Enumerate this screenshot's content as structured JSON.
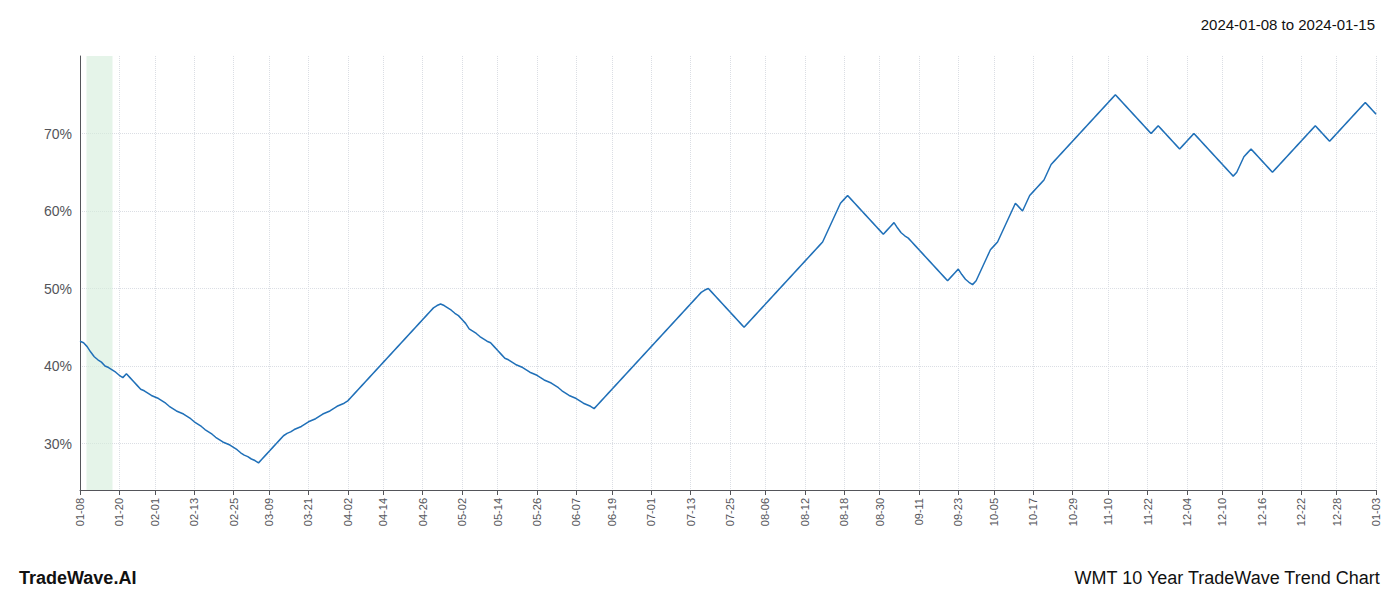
{
  "chart_data": {
    "type": "line",
    "title": "2024-01-08 to 2024-01-15",
    "annotations": [
      "TradeWave.AI",
      "WMT 10 Year TradeWave Trend Chart"
    ],
    "color": "#2070b8",
    "grid": true,
    "ylim": [
      24,
      80
    ],
    "yticks": [
      {
        "value": 30,
        "label": "30%"
      },
      {
        "value": 40,
        "label": "40%"
      },
      {
        "value": 50,
        "label": "50%"
      },
      {
        "value": 60,
        "label": "60%"
      },
      {
        "value": 70,
        "label": "70%"
      }
    ],
    "highlight": {
      "start": 1.82,
      "end": 9.1,
      "color": "#d4edda"
    },
    "categories": [
      "01-08",
      null,
      null,
      null,
      null,
      null,
      null,
      null,
      null,
      null,
      null,
      "01-20",
      null,
      null,
      null,
      null,
      null,
      null,
      null,
      null,
      null,
      "02-01",
      null,
      null,
      null,
      null,
      null,
      null,
      null,
      null,
      null,
      null,
      "02-13",
      null,
      null,
      null,
      null,
      null,
      null,
      null,
      null,
      null,
      null,
      "02-25",
      null,
      null,
      null,
      null,
      null,
      null,
      null,
      null,
      null,
      "03-09",
      null,
      null,
      null,
      null,
      null,
      null,
      null,
      null,
      null,
      null,
      "03-21",
      null,
      null,
      null,
      null,
      null,
      null,
      null,
      null,
      null,
      null,
      "04-02",
      null,
      null,
      null,
      null,
      null,
      null,
      null,
      null,
      null,
      "04-14",
      null,
      null,
      null,
      null,
      null,
      null,
      null,
      null,
      null,
      null,
      "04-26",
      null,
      null,
      null,
      null,
      null,
      null,
      null,
      null,
      null,
      null,
      "05-02",
      null,
      null,
      null,
      null,
      null,
      null,
      null,
      null,
      null,
      "05-14",
      null,
      null,
      null,
      null,
      null,
      null,
      null,
      null,
      null,
      null,
      "05-26",
      null,
      null,
      null,
      null,
      null,
      null,
      null,
      null,
      null,
      null,
      "06-07",
      null,
      null,
      null,
      null,
      null,
      null,
      null,
      null,
      null,
      "06-19",
      null,
      null,
      null,
      null,
      null,
      null,
      null,
      null,
      null,
      null,
      "07-01",
      null,
      null,
      null,
      null,
      null,
      null,
      null,
      null,
      null,
      null,
      "07-13",
      null,
      null,
      null,
      null,
      null,
      null,
      null,
      null,
      null,
      null,
      "07-25",
      null,
      null,
      null,
      null,
      null,
      null,
      null,
      null,
      null,
      "08-06",
      null,
      null,
      null,
      null,
      null,
      null,
      null,
      null,
      null,
      null,
      "08-12",
      null,
      null,
      null,
      null,
      null,
      null,
      null,
      null,
      null,
      null,
      "08-18",
      null,
      null,
      null,
      null,
      null,
      null,
      null,
      null,
      null,
      "08-30",
      null,
      null,
      null,
      null,
      null,
      null,
      null,
      null,
      null,
      null,
      "09-11",
      null,
      null,
      null,
      null,
      null,
      null,
      null,
      null,
      null,
      null,
      "09-23",
      null,
      null,
      null,
      null,
      null,
      null,
      null,
      null,
      null,
      "10-05",
      null,
      null,
      null,
      null,
      null,
      null,
      null,
      null,
      null,
      null,
      "10-17",
      null,
      null,
      null,
      null,
      null,
      null,
      null,
      null,
      null,
      null,
      "10-29",
      null,
      null,
      null,
      null,
      null,
      null,
      null,
      null,
      null,
      "11-10",
      null,
      null,
      null,
      null,
      null,
      null,
      null,
      null,
      null,
      null,
      "11-22",
      null,
      null,
      null,
      null,
      null,
      null,
      null,
      null,
      null,
      null,
      "12-04",
      null,
      null,
      null,
      null,
      null,
      null,
      null,
      null,
      null,
      "12-10",
      null,
      null,
      null,
      null,
      null,
      null,
      null,
      null,
      null,
      null,
      "12-16",
      null,
      null,
      null,
      null,
      null,
      null,
      null,
      null,
      null,
      null,
      "12-22",
      null,
      null,
      null,
      null,
      null,
      null,
      null,
      null,
      null,
      "12-28",
      null,
      null,
      null,
      null,
      null,
      null,
      null,
      null,
      null,
      null,
      "01-03"
    ],
    "values": [
      43.2,
      43.0,
      42.5,
      41.8,
      41.2,
      40.8,
      40.5,
      40.0,
      39.8,
      39.5,
      39.2,
      38.8,
      38.5,
      39.0,
      38.5,
      38.0,
      37.5,
      37.0,
      36.8,
      36.5,
      36.2,
      36.0,
      35.8,
      35.5,
      35.2,
      34.8,
      34.5,
      34.2,
      34.0,
      33.8,
      33.5,
      33.2,
      32.8,
      32.5,
      32.2,
      31.8,
      31.5,
      31.2,
      30.8,
      30.5,
      30.2,
      30.0,
      29.8,
      29.5,
      29.2,
      28.8,
      28.5,
      28.3,
      28.0,
      27.8,
      27.5,
      28.0,
      28.5,
      29.0,
      29.5,
      30.0,
      30.5,
      31.0,
      31.3,
      31.5,
      31.8,
      32.0,
      32.2,
      32.5,
      32.8,
      33.0,
      33.2,
      33.5,
      33.8,
      34.0,
      34.2,
      34.5,
      34.8,
      35.0,
      35.2,
      35.5,
      36.0,
      36.5,
      37.0,
      37.5,
      38.0,
      38.5,
      39.0,
      39.5,
      40.0,
      40.5,
      41.0,
      41.5,
      42.0,
      42.5,
      43.0,
      43.5,
      44.0,
      44.5,
      45.0,
      45.5,
      46.0,
      46.5,
      47.0,
      47.5,
      47.8,
      48.0,
      47.8,
      47.5,
      47.2,
      46.8,
      46.5,
      46.0,
      45.5,
      44.8,
      44.5,
      44.2,
      43.8,
      43.5,
      43.2,
      43.0,
      42.5,
      42.0,
      41.5,
      41.0,
      40.8,
      40.5,
      40.2,
      40.0,
      39.8,
      39.5,
      39.2,
      39.0,
      38.8,
      38.5,
      38.2,
      38.0,
      37.8,
      37.5,
      37.2,
      36.8,
      36.5,
      36.2,
      36.0,
      35.8,
      35.5,
      35.2,
      35.0,
      34.8,
      34.5,
      35.0,
      35.5,
      36.0,
      36.5,
      37.0,
      37.5,
      38.0,
      38.5,
      39.0,
      39.5,
      40.0,
      40.5,
      41.0,
      41.5,
      42.0,
      42.5,
      43.0,
      43.5,
      44.0,
      44.5,
      45.0,
      45.5,
      46.0,
      46.5,
      47.0,
      47.5,
      48.0,
      48.5,
      49.0,
      49.5,
      49.8,
      50.0,
      49.5,
      49.0,
      48.5,
      48.0,
      47.5,
      47.0,
      46.5,
      46.0,
      45.5,
      45.0,
      45.5,
      46.0,
      46.5,
      47.0,
      47.5,
      48.0,
      48.5,
      49.0,
      49.5,
      50.0,
      50.5,
      51.0,
      51.5,
      52.0,
      52.5,
      53.0,
      53.5,
      54.0,
      54.5,
      55.0,
      55.5,
      56.0,
      57.0,
      58.0,
      59.0,
      60.0,
      61.0,
      61.5,
      62.0,
      61.5,
      61.0,
      60.5,
      60.0,
      59.5,
      59.0,
      58.5,
      58.0,
      57.5,
      57.0,
      57.5,
      58.0,
      58.5,
      57.8,
      57.2,
      56.8,
      56.5,
      56.0,
      55.5,
      55.0,
      54.5,
      54.0,
      53.5,
      53.0,
      52.5,
      52.0,
      51.5,
      51.0,
      51.5,
      52.0,
      52.5,
      51.8,
      51.2,
      50.8,
      50.5,
      51.0,
      52.0,
      53.0,
      54.0,
      55.0,
      55.5,
      56.0,
      57.0,
      58.0,
      59.0,
      60.0,
      61.0,
      60.5,
      60.0,
      61.0,
      62.0,
      62.5,
      63.0,
      63.5,
      64.0,
      65.0,
      66.0,
      66.5,
      67.0,
      67.5,
      68.0,
      68.5,
      69.0,
      69.5,
      70.0,
      70.5,
      71.0,
      71.5,
      72.0,
      72.5,
      73.0,
      73.5,
      74.0,
      74.5,
      75.0,
      74.5,
      74.0,
      73.5,
      73.0,
      72.5,
      72.0,
      71.5,
      71.0,
      70.5,
      70.0,
      70.5,
      71.0,
      70.5,
      70.0,
      69.5,
      69.0,
      68.5,
      68.0,
      68.5,
      69.0,
      69.5,
      70.0,
      69.5,
      69.0,
      68.5,
      68.0,
      67.5,
      67.0,
      66.5,
      66.0,
      65.5,
      65.0,
      64.5,
      65.0,
      66.0,
      67.0,
      67.5,
      68.0,
      67.5,
      67.0,
      66.5,
      66.0,
      65.5,
      65.0,
      65.5,
      66.0,
      66.5,
      67.0,
      67.5,
      68.0,
      68.5,
      69.0,
      69.5,
      70.0,
      70.5,
      71.0,
      70.5,
      70.0,
      69.5,
      69.0,
      69.5,
      70.0,
      70.5,
      71.0,
      71.5,
      72.0,
      72.5,
      73.0,
      73.5,
      74.0,
      73.5,
      73.0,
      72.5
    ]
  }
}
